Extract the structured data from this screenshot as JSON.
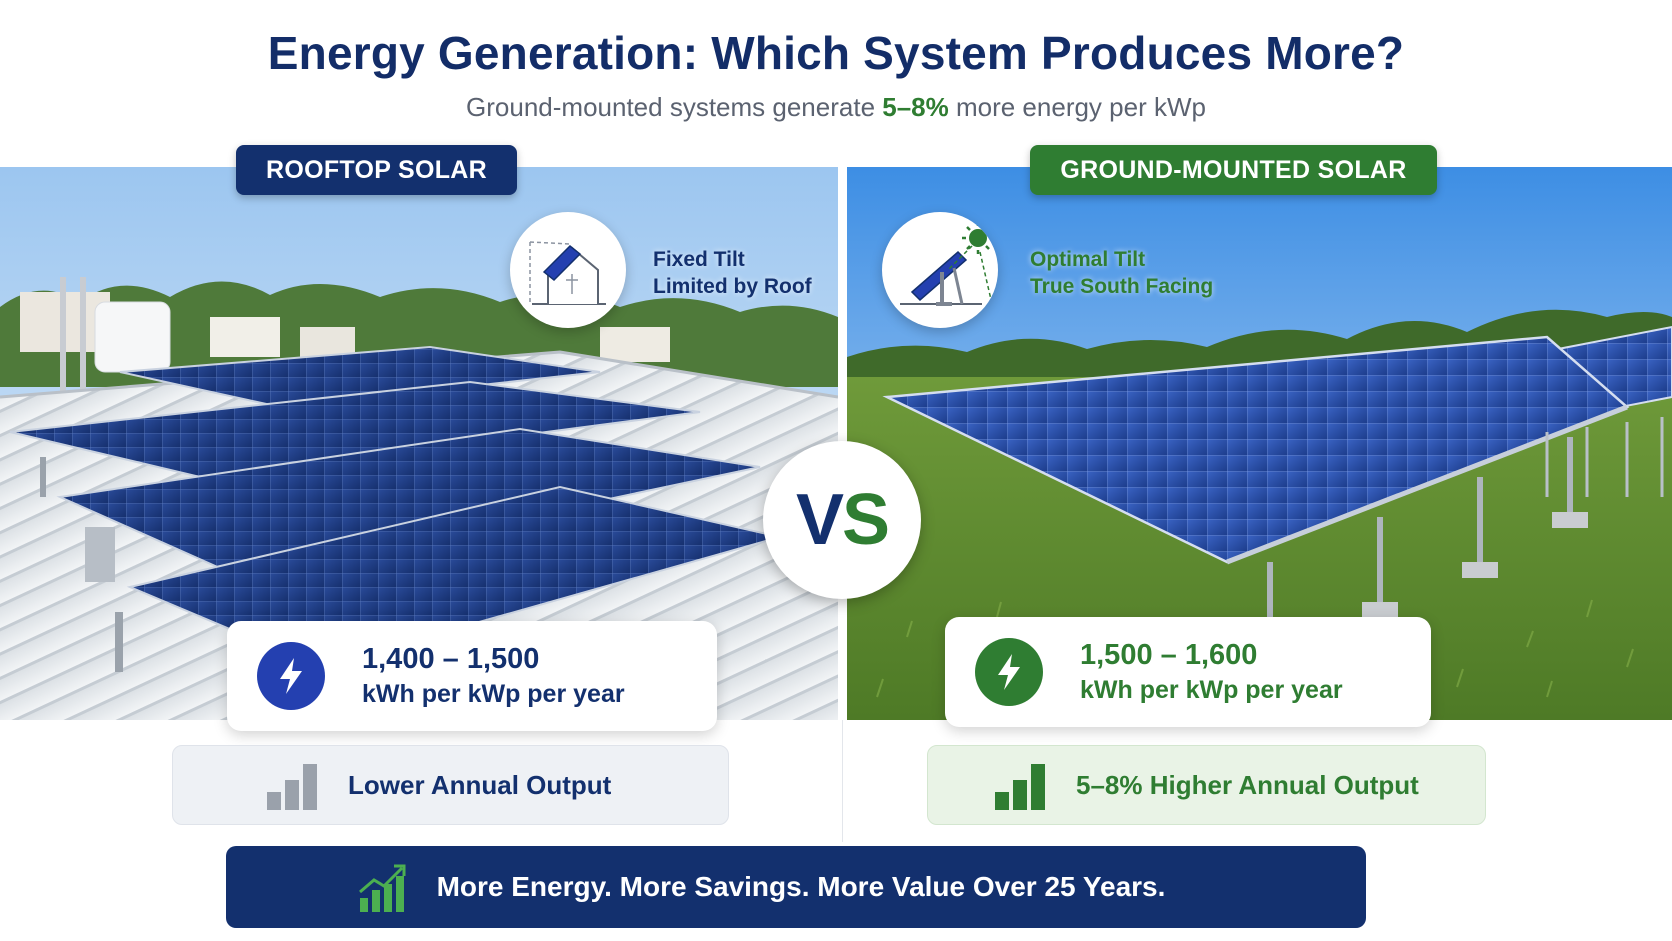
{
  "header": {
    "title": "Energy Generation: Which System Produces More?",
    "subtitle_before": "Ground-mounted systems generate ",
    "subtitle_highlight": "5–8%",
    "subtitle_after": " more energy per kWp"
  },
  "rooftop": {
    "label": "ROOFTOP SOLAR",
    "tilt_line1": "Fixed Tilt",
    "tilt_line2": "Limited by Roof",
    "value": "1,400 – 1,500",
    "unit": "kWh per kWp per year",
    "output": "Lower Annual Output",
    "icon": "house-tilt-icon"
  },
  "ground": {
    "label": "GROUND-MOUNTED SOLAR",
    "tilt_line1": "Optimal Tilt",
    "tilt_line2": "True South Facing",
    "value": "1,500 – 1,600",
    "unit": "kWh per kWp per year",
    "output": "5–8% Higher Annual Output",
    "icon": "sun-tilt-icon"
  },
  "vs": {
    "v": "V",
    "s": "S"
  },
  "banner": {
    "text": "More Energy. More Savings. More Value Over 25 Years."
  },
  "colors": {
    "navy": "#13306e",
    "green": "#2f7d32",
    "blue_accent": "#2440b0"
  }
}
